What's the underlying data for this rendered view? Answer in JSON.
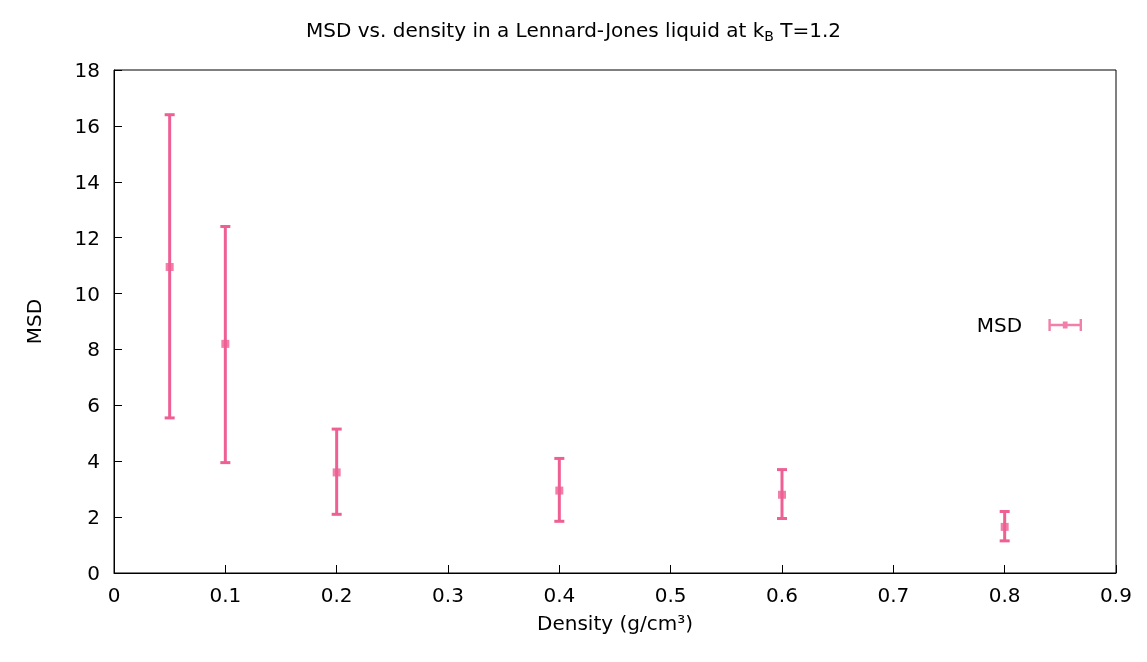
{
  "chart_data": {
    "type": "scatter",
    "title": "MSD vs. density in a Lennard-Jones liquid at k$_{B}$ T=1.2",
    "xlabel": "Density (g/cm³)",
    "ylabel": "MSD",
    "x": [
      0.05,
      0.1,
      0.2,
      0.4,
      0.6,
      0.8
    ],
    "series": [
      {
        "name": "MSD",
        "color": "#ee5f94",
        "values": [
          10.95,
          8.2,
          3.6,
          2.95,
          2.8,
          1.65
        ],
        "errors": [
          [
            5.55,
            16.4
          ],
          [
            3.95,
            12.4
          ],
          [
            2.1,
            5.15
          ],
          [
            1.85,
            4.1
          ],
          [
            1.95,
            3.7
          ],
          [
            1.15,
            2.2
          ]
        ]
      }
    ],
    "xlim": [
      0,
      0.9
    ],
    "xticks": [
      0,
      0.1,
      0.2,
      0.3,
      0.4,
      0.5,
      0.6,
      0.7,
      0.8,
      0.9
    ],
    "ylim": [
      0,
      18
    ],
    "yticks": [
      0,
      2,
      4,
      6,
      8,
      10,
      12,
      14,
      16,
      18
    ],
    "grid": false,
    "legend": "right",
    "marker": "square"
  }
}
